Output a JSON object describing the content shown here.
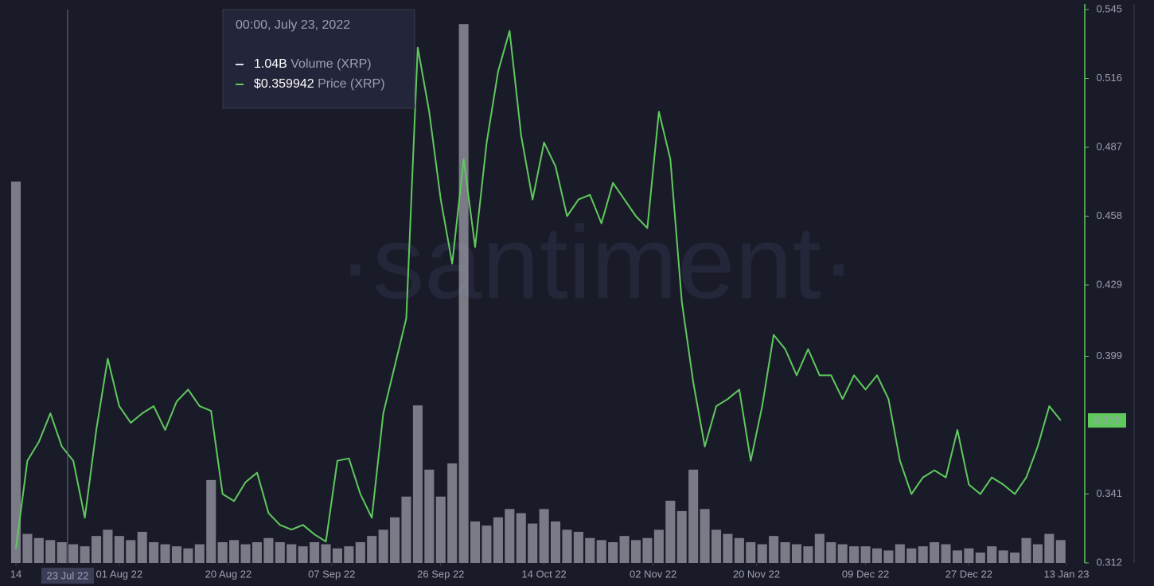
{
  "chart_data": {
    "type": "line",
    "watermark": "·santiment·",
    "x": [
      "2022-07-14",
      "2022-07-16",
      "2022-07-18",
      "2022-07-20",
      "2022-07-22",
      "2022-07-24",
      "2022-07-26",
      "2022-07-28",
      "2022-07-30",
      "2022-08-01",
      "2022-08-03",
      "2022-08-05",
      "2022-08-07",
      "2022-08-09",
      "2022-08-11",
      "2022-08-13",
      "2022-08-15",
      "2022-08-17",
      "2022-08-19",
      "2022-08-21",
      "2022-08-23",
      "2022-08-25",
      "2022-08-27",
      "2022-08-29",
      "2022-08-31",
      "2022-09-02",
      "2022-09-04",
      "2022-09-06",
      "2022-09-08",
      "2022-09-10",
      "2022-09-12",
      "2022-09-14",
      "2022-09-16",
      "2022-09-18",
      "2022-09-20",
      "2022-09-22",
      "2022-09-24",
      "2022-09-26",
      "2022-09-28",
      "2022-09-30",
      "2022-10-02",
      "2022-10-04",
      "2022-10-06",
      "2022-10-08",
      "2022-10-10",
      "2022-10-12",
      "2022-10-14",
      "2022-10-16",
      "2022-10-18",
      "2022-10-20",
      "2022-10-22",
      "2022-10-24",
      "2022-10-26",
      "2022-10-28",
      "2022-10-30",
      "2022-11-01",
      "2022-11-03",
      "2022-11-05",
      "2022-11-07",
      "2022-11-09",
      "2022-11-11",
      "2022-11-13",
      "2022-11-15",
      "2022-11-17",
      "2022-11-19",
      "2022-11-21",
      "2022-11-23",
      "2022-11-25",
      "2022-11-27",
      "2022-11-29",
      "2022-12-01",
      "2022-12-03",
      "2022-12-05",
      "2022-12-07",
      "2022-12-09",
      "2022-12-11",
      "2022-12-13",
      "2022-12-15",
      "2022-12-17",
      "2022-12-19",
      "2022-12-21",
      "2022-12-23",
      "2022-12-25",
      "2022-12-27",
      "2022-12-29",
      "2022-12-31",
      "2023-01-02",
      "2023-01-04",
      "2023-01-06",
      "2023-01-08",
      "2023-01-10",
      "2023-01-12"
    ],
    "series": [
      {
        "name": "Volume (XRP)",
        "color": "#9c9ca8",
        "axis": "y2",
        "values": [
          18.4,
          1.4,
          1.2,
          1.1,
          1.0,
          0.9,
          0.8,
          1.3,
          1.6,
          1.3,
          1.1,
          1.5,
          1.0,
          0.9,
          0.8,
          0.7,
          0.9,
          4.0,
          1.0,
          1.1,
          0.9,
          1.0,
          1.2,
          1.0,
          0.9,
          0.8,
          1.0,
          0.9,
          0.7,
          0.8,
          1.0,
          1.3,
          1.6,
          2.2,
          3.2,
          7.6,
          4.5,
          3.2,
          4.8,
          26.0,
          2.0,
          1.8,
          2.2,
          2.6,
          2.4,
          1.9,
          2.6,
          2.0,
          1.6,
          1.5,
          1.2,
          1.1,
          1.0,
          1.3,
          1.1,
          1.2,
          1.6,
          3.0,
          2.5,
          4.5,
          2.6,
          1.6,
          1.4,
          1.2,
          1.0,
          0.9,
          1.3,
          1.0,
          0.9,
          0.8,
          1.4,
          1.0,
          0.9,
          0.8,
          0.8,
          0.7,
          0.6,
          0.9,
          0.7,
          0.8,
          1.0,
          0.9,
          0.6,
          0.7,
          0.5,
          0.8,
          0.6,
          0.5,
          1.2,
          0.9,
          1.4,
          1.1
        ]
      },
      {
        "name": "Price (XRP)",
        "color": "#5fc95d",
        "values": [
          0.318,
          0.355,
          0.363,
          0.375,
          0.361,
          0.355,
          0.331,
          0.368,
          0.398,
          0.378,
          0.371,
          0.375,
          0.378,
          0.368,
          0.38,
          0.385,
          0.378,
          0.376,
          0.341,
          0.338,
          0.346,
          0.35,
          0.333,
          0.328,
          0.326,
          0.328,
          0.324,
          0.321,
          0.355,
          0.356,
          0.341,
          0.331,
          0.375,
          0.395,
          0.415,
          0.529,
          0.502,
          0.465,
          0.438,
          0.482,
          0.445,
          0.489,
          0.519,
          0.536,
          0.492,
          0.465,
          0.489,
          0.479,
          0.458,
          0.465,
          0.467,
          0.455,
          0.472,
          0.465,
          0.458,
          0.453,
          0.502,
          0.482,
          0.422,
          0.388,
          0.361,
          0.378,
          0.381,
          0.385,
          0.355,
          0.378,
          0.408,
          0.402,
          0.391,
          0.402,
          0.391,
          0.391,
          0.381,
          0.391,
          0.385,
          0.391,
          0.381,
          0.355,
          0.341,
          0.348,
          0.351,
          0.348,
          0.368,
          0.345,
          0.341,
          0.348,
          0.345,
          0.341,
          0.348,
          0.361,
          0.378,
          0.372
        ]
      }
    ],
    "xlim": [
      "2022-07-14",
      "2023-01-13"
    ],
    "xticks": [
      {
        "value": "2022-07-14",
        "label": "14"
      },
      {
        "value": "2022-08-01",
        "label": "01 Aug 22"
      },
      {
        "value": "2022-08-20",
        "label": "20 Aug 22"
      },
      {
        "value": "2022-09-07",
        "label": "07 Sep 22"
      },
      {
        "value": "2022-09-26",
        "label": "26 Sep 22"
      },
      {
        "value": "2022-10-14",
        "label": "14 Oct 22"
      },
      {
        "value": "2022-11-02",
        "label": "02 Nov 22"
      },
      {
        "value": "2022-11-20",
        "label": "20 Nov 22"
      },
      {
        "value": "2022-12-09",
        "label": "09 Dec 22"
      },
      {
        "value": "2022-12-27",
        "label": "27 Dec 22"
      },
      {
        "value": "2023-01-13",
        "label": "13 Jan 23"
      }
    ],
    "ylim": [
      0.312,
      0.545
    ],
    "yticks": [
      0.312,
      0.341,
      0.399,
      0.429,
      0.458,
      0.487,
      0.516,
      0.545
    ],
    "y2lim": [
      0,
      26.7
    ],
    "current_price": 0.372,
    "tooltip": {
      "date": "00:00, July 23, 2022",
      "axis_label": "23 Jul 22",
      "position": "2022-07-23",
      "values": [
        "1.04B",
        "$0.359942"
      ]
    }
  }
}
